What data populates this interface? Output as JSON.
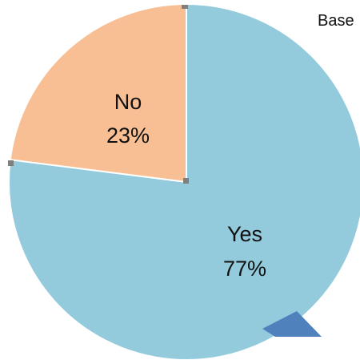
{
  "chart_data": {
    "type": "pie",
    "categories": [
      "Yes",
      "No"
    ],
    "values": [
      77,
      23
    ],
    "value_labels": [
      "77%",
      "23%"
    ],
    "colors": [
      "#93cbdc",
      "#f8bf94"
    ],
    "partial_text": "Base"
  }
}
